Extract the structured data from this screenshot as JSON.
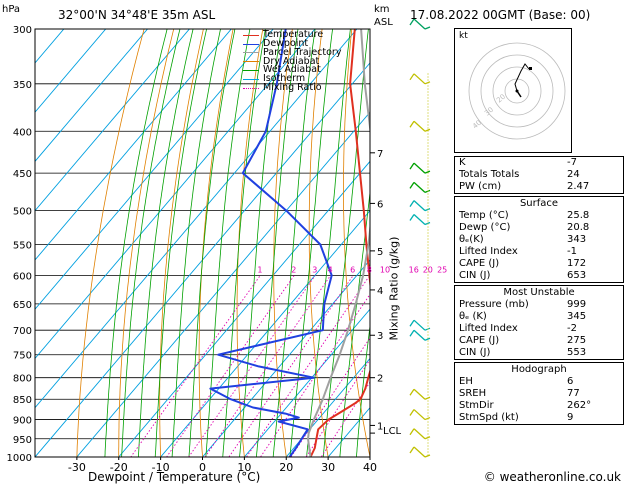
{
  "header": {
    "hpa_label": "hPa",
    "location": "32°00'N  34°48'E  35m  ASL",
    "km_label": "km",
    "asl_label": "ASL",
    "datetime": "17.08.2022  00GMT  (Base: 00)"
  },
  "legend": [
    {
      "label": "Temperature",
      "color": "#e03020",
      "style": "solid"
    },
    {
      "label": "Dewpoint",
      "color": "#2040e0",
      "style": "solid"
    },
    {
      "label": "Parcel Trajectory",
      "color": "#a0a0a0",
      "style": "solid"
    },
    {
      "label": "Dry Adiabat",
      "color": "#e08000",
      "style": "solid"
    },
    {
      "label": "Wet Adiabat",
      "color": "#00a000",
      "style": "solid"
    },
    {
      "label": "Isotherm",
      "color": "#00a0e0",
      "style": "solid"
    },
    {
      "label": "Mixing Ratio",
      "color": "#e000b0",
      "style": "dotted"
    }
  ],
  "chart_data": {
    "type": "line",
    "title": "",
    "xlabel": "Dewpoint / Temperature (°C)",
    "ylabel": "hPa",
    "y2label": "Mixing Ratio (g/kg)",
    "pressure_ticks": [
      300,
      350,
      400,
      450,
      500,
      550,
      600,
      650,
      700,
      750,
      800,
      850,
      900,
      950,
      1000
    ],
    "temp_ticks": [
      -30,
      -20,
      -10,
      0,
      10,
      20,
      30,
      40
    ],
    "xlim": [
      -40,
      40
    ],
    "ylim": [
      1000,
      300
    ],
    "km_ticks": [
      {
        "km": "1",
        "p": 915
      },
      {
        "km": "2",
        "p": 800
      },
      {
        "km": "3",
        "p": 710
      },
      {
        "km": "4",
        "p": 625
      },
      {
        "km": "5",
        "p": 560
      },
      {
        "km": "6",
        "p": 490
      },
      {
        "km": "7",
        "p": 425
      }
    ],
    "lcl_label": "LCL",
    "lcl_p": 935,
    "mixing_ratio_labels": [
      "1",
      "2",
      "3",
      "4",
      "6",
      "8",
      "10",
      "16",
      "20",
      "25"
    ],
    "mixing_ratio_values": [
      1,
      2,
      3,
      4,
      6,
      8,
      10,
      16,
      20,
      25
    ],
    "series": [
      {
        "name": "Temperature",
        "p": [
          1000,
          975,
          950,
          925,
          900,
          880,
          860,
          850,
          825,
          800,
          775,
          750,
          700,
          650,
          600,
          550,
          500,
          450,
          400,
          350,
          300
        ],
        "values": [
          25.8,
          25.0,
          23.5,
          22.0,
          22.5,
          24.0,
          25.5,
          26.0,
          25.0,
          23.5,
          22.0,
          20.5,
          15.5,
          9.5,
          3.0,
          -4.0,
          -11.5,
          -20.0,
          -29.5,
          -40.5,
          -50.5
        ]
      },
      {
        "name": "Dewpoint",
        "p": [
          1000,
          975,
          950,
          925,
          905,
          895,
          885,
          870,
          850,
          825,
          800,
          775,
          750,
          700,
          650,
          600,
          550,
          500,
          450,
          400,
          350,
          300
        ],
        "values": [
          20.8,
          20.5,
          20.0,
          19.5,
          11.0,
          15.0,
          11.0,
          2.0,
          -5.0,
          -12.0,
          10.5,
          -5.0,
          -17.0,
          3.0,
          -2.0,
          -6.0,
          -15.0,
          -30.0,
          -48.0,
          -51.0,
          -58.0,
          -67.0
        ]
      },
      {
        "name": "Parcel Trajectory",
        "p": [
          1000,
          950,
          935,
          900,
          850,
          800,
          750,
          700,
          650,
          600,
          550,
          500,
          450,
          400,
          350,
          300
        ],
        "values": [
          25.8,
          21.5,
          20.5,
          19.0,
          17.0,
          14.5,
          12.0,
          9.0,
          5.5,
          1.5,
          -3.5,
          -9.5,
          -17.0,
          -26.0,
          -37.0,
          -49.0
        ]
      }
    ]
  },
  "hodograph": {
    "kt_label": "kt",
    "ring_labels": [
      "10",
      "20",
      "30",
      "40"
    ]
  },
  "indices": [
    {
      "label": "K",
      "value": "-7"
    },
    {
      "label": "Totals Totals",
      "value": "24"
    },
    {
      "label": "PW (cm)",
      "value": "2.47"
    }
  ],
  "surface": {
    "title": "Surface",
    "rows": [
      {
        "label": "Temp (°C)",
        "value": "25.8"
      },
      {
        "label": "Dewp (°C)",
        "value": "20.8"
      },
      {
        "label": "θₑ(K)",
        "value": "343"
      },
      {
        "label": "Lifted Index",
        "value": "-1"
      },
      {
        "label": "CAPE (J)",
        "value": "172"
      },
      {
        "label": "CIN (J)",
        "value": "653"
      }
    ]
  },
  "most_unstable": {
    "title": "Most Unstable",
    "rows": [
      {
        "label": "Pressure (mb)",
        "value": "999"
      },
      {
        "label": "θₑ (K)",
        "value": "345"
      },
      {
        "label": "Lifted Index",
        "value": "-2"
      },
      {
        "label": "CAPE (J)",
        "value": "275"
      },
      {
        "label": "CIN (J)",
        "value": "553"
      }
    ]
  },
  "hodograph_stats": {
    "title": "Hodograph",
    "rows": [
      {
        "label": "EH",
        "value": "6"
      },
      {
        "label": "SREH",
        "value": "77"
      },
      {
        "label": "StmDir",
        "value": "262°"
      },
      {
        "label": "StmSpd (kt)",
        "value": "9"
      }
    ]
  },
  "footer": {
    "credit": "© weatheronline.co.uk"
  }
}
